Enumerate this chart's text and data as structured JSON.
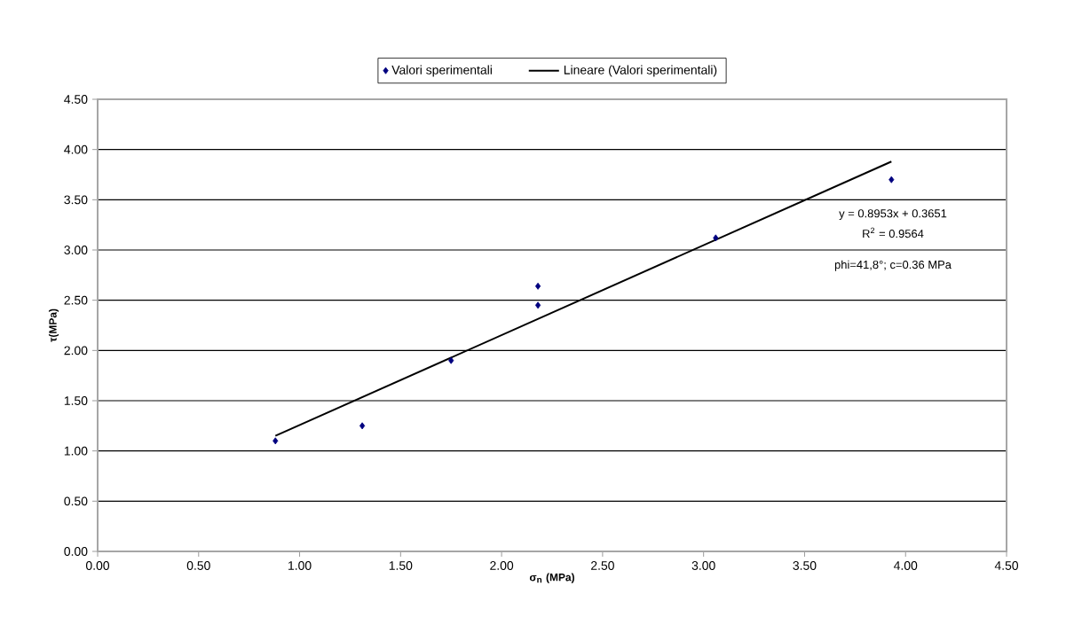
{
  "chart_data": {
    "type": "scatter",
    "xlabel": "σ$_{n}$ (MPa)",
    "ylabel": "τ(MPa)",
    "xlim": [
      0,
      4.5
    ],
    "ylim": [
      0,
      4.5
    ],
    "xticks": [
      {
        "value": 0,
        "label": "0.00"
      },
      {
        "value": 0.5,
        "label": "0.50"
      },
      {
        "value": 1,
        "label": "1.00"
      },
      {
        "value": 1.5,
        "label": "1.50"
      },
      {
        "value": 2,
        "label": "2.00"
      },
      {
        "value": 2.5,
        "label": "2.50"
      },
      {
        "value": 3,
        "label": "3.00"
      },
      {
        "value": 3.5,
        "label": "3.50"
      },
      {
        "value": 4,
        "label": "4.00"
      },
      {
        "value": 4.5,
        "label": "4.50"
      }
    ],
    "yticks": [
      {
        "value": 0,
        "label": "0.00"
      },
      {
        "value": 0.5,
        "label": "0.50"
      },
      {
        "value": 1,
        "label": "1.00"
      },
      {
        "value": 1.5,
        "label": "1.50"
      },
      {
        "value": 2,
        "label": "2.00"
      },
      {
        "value": 2.5,
        "label": "2.50"
      },
      {
        "value": 3,
        "label": "3.00"
      },
      {
        "value": 3.5,
        "label": "3.50"
      },
      {
        "value": 4,
        "label": "4.00"
      },
      {
        "value": 4.5,
        "label": "4.50"
      }
    ],
    "grid": "y",
    "legend": "top",
    "series": [
      {
        "name": "Valori sperimentali",
        "color": "#00007f",
        "marker": "diamond",
        "x": [
          0.88,
          1.31,
          1.75,
          2.18,
          2.18,
          3.06,
          3.93
        ],
        "values": [
          1.1,
          1.25,
          1.9,
          2.64,
          2.45,
          3.12,
          3.7
        ]
      },
      {
        "name": "Lineare (Valori sperimentali)",
        "type": "line",
        "color": "#000000",
        "marker": "none",
        "line_style": "solid",
        "x": [
          0.88,
          3.93
        ],
        "values": [
          1.15,
          3.88
        ]
      }
    ],
    "annotations": [
      "y = 0.8953x + 0.3651",
      "R$^{2}$ = 0.9564",
      "phi=41,8°; c=0.36 MPa"
    ]
  }
}
